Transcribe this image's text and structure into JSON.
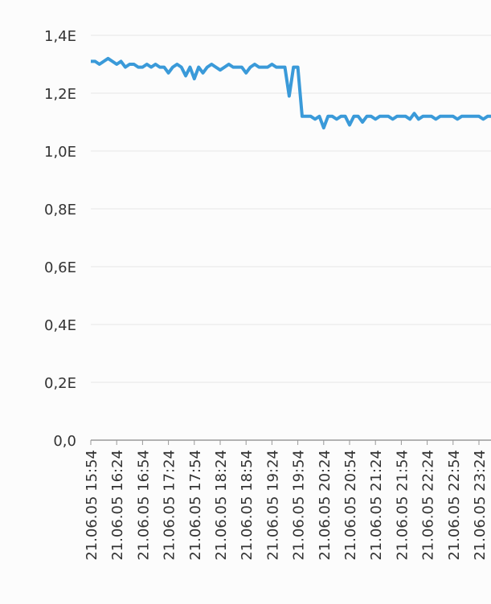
{
  "chart_data": {
    "type": "line",
    "color": "#3a9ad9",
    "grid": true,
    "ylim": [
      0,
      1.4
    ],
    "yticks": [
      {
        "value": 0,
        "label": "0,0"
      },
      {
        "value": 0.2,
        "label": "0,2E"
      },
      {
        "value": 0.4,
        "label": "0,4E"
      },
      {
        "value": 0.6,
        "label": "0,6E"
      },
      {
        "value": 0.8,
        "label": "0,8E"
      },
      {
        "value": 1.0,
        "label": "1,0E"
      },
      {
        "value": 1.2,
        "label": "1,2E"
      },
      {
        "value": 1.4,
        "label": "1,4E"
      }
    ],
    "categories": [
      "21.06.05 15:54",
      null,
      null,
      null,
      null,
      null,
      "21.06.05 16:24",
      null,
      null,
      null,
      null,
      null,
      "21.06.05 16:54",
      null,
      null,
      null,
      null,
      null,
      "21.06.05 17:24",
      null,
      null,
      null,
      null,
      null,
      "21.06.05 17:54",
      null,
      null,
      null,
      null,
      null,
      "21.06.05 18:24",
      null,
      null,
      null,
      null,
      null,
      "21.06.05 18:54",
      null,
      null,
      null,
      null,
      null,
      "21.06.05 19:24",
      null,
      null,
      null,
      null,
      null,
      "21.06.05 19:54",
      null,
      null,
      null,
      null,
      null,
      "21.06.05 20:24",
      null,
      null,
      null,
      null,
      null,
      "21.06.05 20:54",
      null,
      null,
      null,
      null,
      null,
      "21.06.05 21:24",
      null,
      null,
      null,
      null,
      null,
      "21.06.05 21:54",
      null,
      null,
      null,
      null,
      null,
      "21.06.05 22:24",
      null,
      null,
      null,
      null,
      null,
      "21.06.05 22:54",
      null,
      null,
      null,
      null,
      null,
      "21.06.05 23:24",
      null,
      null,
      null
    ],
    "values": [
      1.31,
      1.31,
      1.3,
      1.31,
      1.32,
      1.31,
      1.3,
      1.31,
      1.29,
      1.3,
      1.3,
      1.29,
      1.29,
      1.3,
      1.29,
      1.3,
      1.29,
      1.29,
      1.27,
      1.29,
      1.3,
      1.29,
      1.26,
      1.29,
      1.25,
      1.29,
      1.27,
      1.29,
      1.3,
      1.29,
      1.28,
      1.29,
      1.3,
      1.29,
      1.29,
      1.29,
      1.27,
      1.29,
      1.3,
      1.29,
      1.29,
      1.29,
      1.3,
      1.29,
      1.29,
      1.29,
      1.19,
      1.29,
      1.29,
      1.12,
      1.12,
      1.12,
      1.11,
      1.12,
      1.08,
      1.12,
      1.12,
      1.11,
      1.12,
      1.12,
      1.09,
      1.12,
      1.12,
      1.1,
      1.12,
      1.12,
      1.11,
      1.12,
      1.12,
      1.12,
      1.11,
      1.12,
      1.12,
      1.12,
      1.11,
      1.13,
      1.11,
      1.12,
      1.12,
      1.12,
      1.11,
      1.12,
      1.12,
      1.12,
      1.12,
      1.11,
      1.12,
      1.12,
      1.12,
      1.12,
      1.12,
      1.11,
      1.12,
      1.12
    ]
  }
}
